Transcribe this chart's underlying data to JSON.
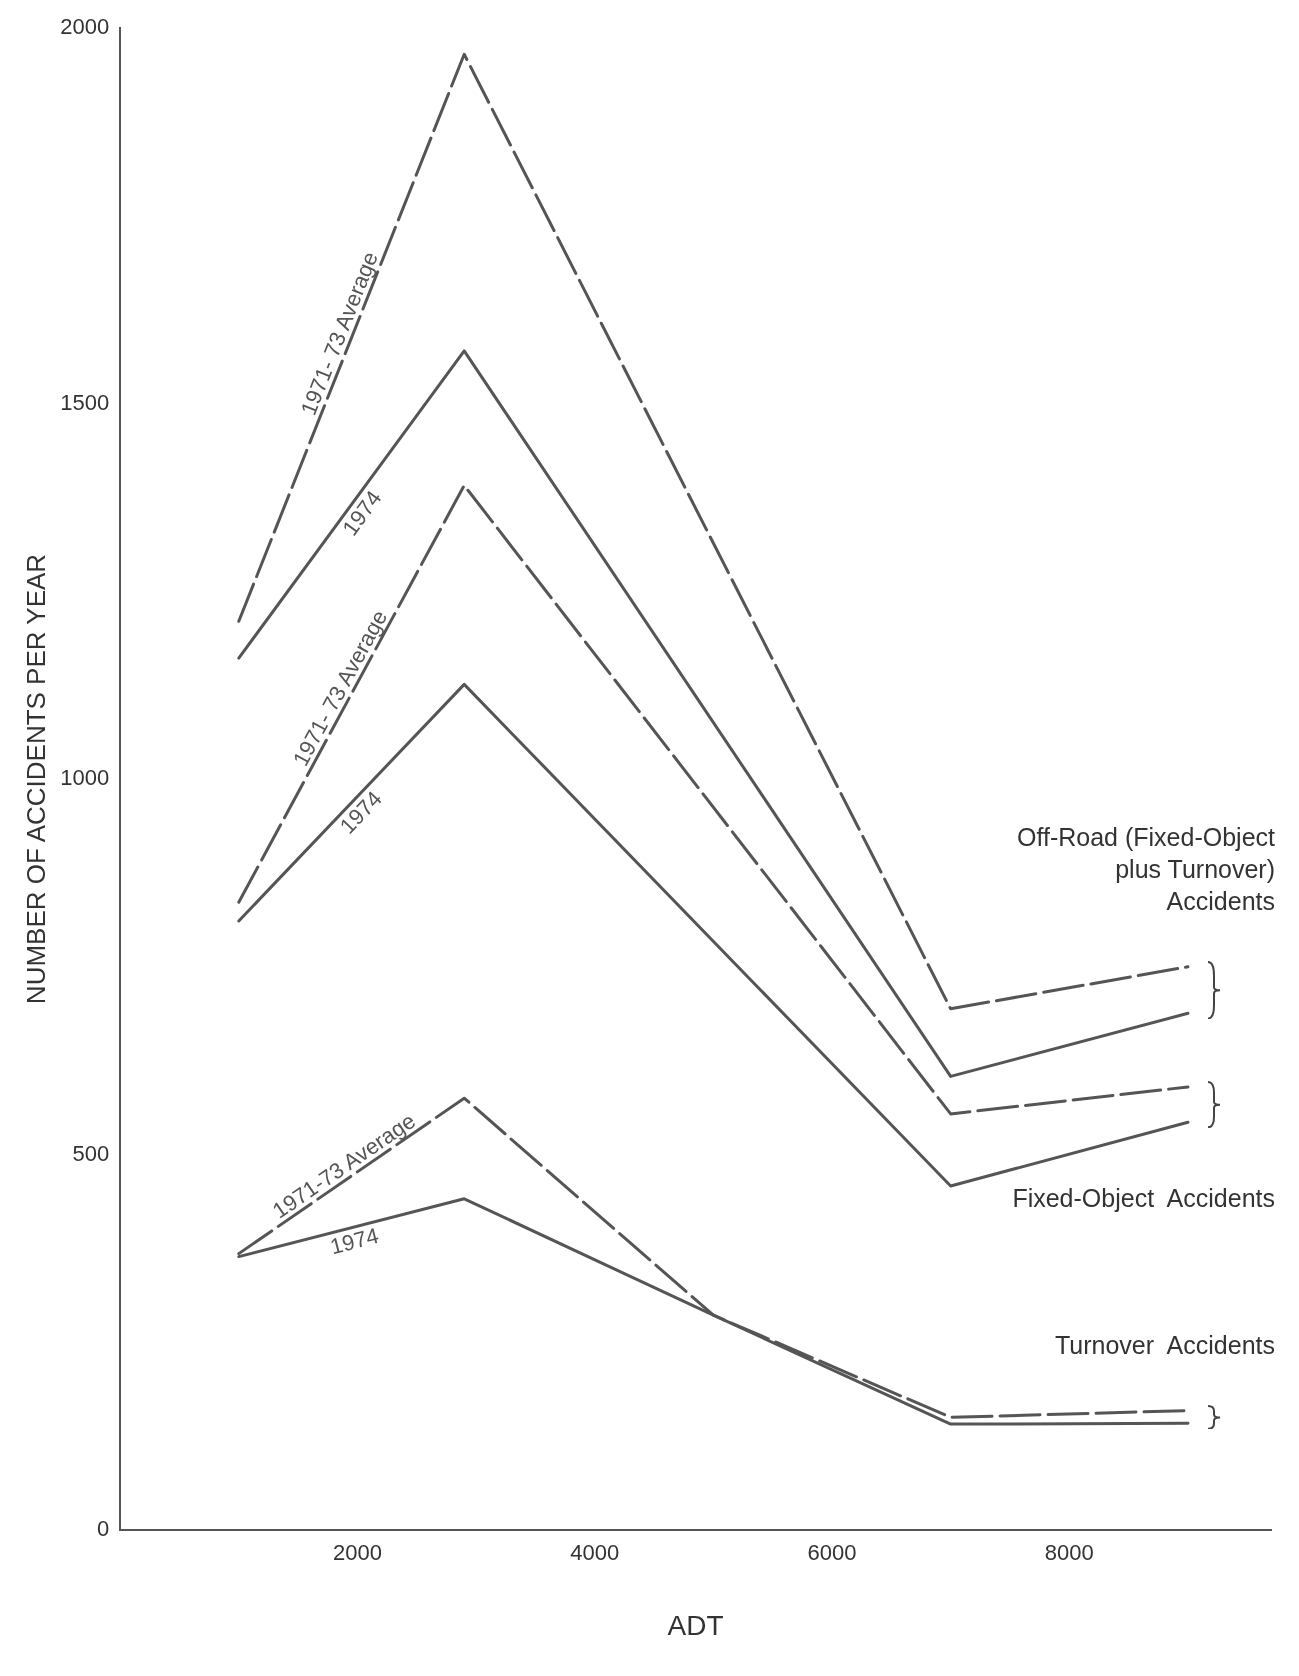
{
  "chart_data": {
    "type": "line",
    "xlabel": "ADT",
    "ylabel": "NUMBER OF ACCIDENTS PER YEAR",
    "xlim": [
      0,
      9700
    ],
    "xticks": [
      2000,
      4000,
      6000,
      8000
    ],
    "ylim": [
      0,
      2000
    ],
    "yticks": [
      0,
      500,
      1000,
      1500,
      2000
    ],
    "grid": false,
    "legend": false,
    "marker": "none",
    "series": [
      {
        "name": "1971- 73 Average",
        "color": "#555555",
        "line_style": "dashed",
        "x": [
          1000,
          2900,
          7000,
          9000
        ],
        "values": [
          1210,
          1965,
          694,
          750
        ]
      },
      {
        "name": "1974",
        "color": "#555555",
        "line_style": "solid",
        "x": [
          1000,
          2900,
          7000,
          9000
        ],
        "values": [
          1161,
          1570,
          604,
          688
        ]
      },
      {
        "name": "1971- 73 Average",
        "color": "#555555",
        "line_style": "dashed",
        "x": [
          1000,
          2900,
          7000,
          9000
        ],
        "values": [
          836,
          1391,
          554,
          590
        ]
      },
      {
        "name": "1974",
        "color": "#555555",
        "line_style": "solid",
        "x": [
          1000,
          2900,
          7000,
          9000
        ],
        "values": [
          811,
          1126,
          458,
          543
        ]
      },
      {
        "name": "1971-73 Average",
        "color": "#555555",
        "line_style": "dashed",
        "x": [
          1000,
          2900,
          5000,
          7000,
          9000
        ],
        "values": [
          368,
          575,
          286,
          150,
          159
        ]
      },
      {
        "name": "1974",
        "color": "#555555",
        "line_style": "solid",
        "x": [
          1000,
          2900,
          5000,
          7000,
          9000
        ],
        "values": [
          364,
          441,
          286,
          141,
          142
        ]
      }
    ],
    "annotations": [
      "Off-Road (Fixed-Object\nplus Turnover)\nAccidents",
      "Fixed-Object  Accidents",
      "Turnover  Accidents"
    ]
  }
}
